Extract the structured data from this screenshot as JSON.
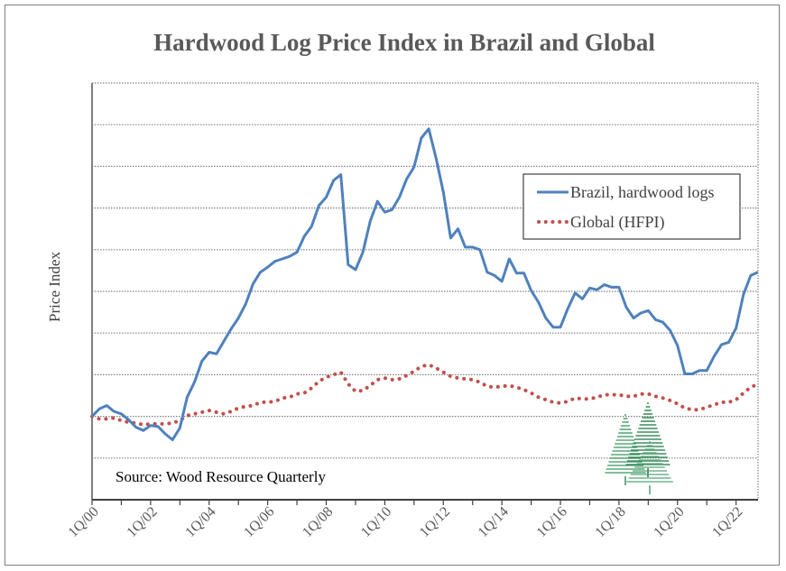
{
  "chart_data": {
    "type": "line",
    "title": "Hardwood Log Price Index in Brazil and Global",
    "xlabel": "",
    "ylabel": "Price Index",
    "x_tick_labels": [
      "1Q/00",
      "1Q/02",
      "1Q/04",
      "1Q/06",
      "1Q/08",
      "1Q/10",
      "1Q/12",
      "1Q/14",
      "1Q/16",
      "1Q/18",
      "1Q/20",
      "1Q/22"
    ],
    "x_start": "1Q/00",
    "x_end": "4Q/22",
    "x_frequency": "quarterly",
    "ylim": [
      0,
      500
    ],
    "y_tick_labels_visible": false,
    "grid": "horizontal dotted",
    "legend_position": "top-right",
    "annotation": "Source: Wood Resource Quarterly",
    "series": [
      {
        "name": "Brazil, hardwood logs",
        "color": "#4f81bd",
        "style": "solid",
        "values": [
          100,
          109,
          113,
          106,
          103,
          96,
          87,
          83,
          89,
          88,
          79,
          72,
          86,
          123,
          141,
          166,
          177,
          175,
          190,
          205,
          218,
          235,
          259,
          273,
          279,
          286,
          289,
          292,
          297,
          316,
          328,
          353,
          363,
          383,
          390,
          282,
          276,
          297,
          334,
          358,
          345,
          348,
          363,
          385,
          399,
          434,
          445,
          410,
          369,
          314,
          325,
          303,
          303,
          300,
          273,
          269,
          262,
          289,
          272,
          272,
          251,
          237,
          218,
          207,
          207,
          229,
          248,
          241,
          254,
          252,
          258,
          255,
          255,
          231,
          218,
          224,
          227,
          216,
          213,
          203,
          185,
          151,
          151,
          155,
          155,
          172,
          186,
          189,
          206,
          246,
          269,
          273
        ]
      },
      {
        "name": "Global (HFPI)",
        "color": "#c0504d",
        "style": "dotted",
        "values": [
          100,
          97,
          97,
          98,
          95,
          93,
          92,
          90,
          91,
          91,
          91,
          92,
          95,
          101,
          103,
          105,
          107,
          105,
          103,
          106,
          110,
          112,
          113,
          117,
          117,
          118,
          122,
          123,
          127,
          128,
          134,
          142,
          147,
          150,
          153,
          139,
          130,
          131,
          137,
          144,
          146,
          144,
          145,
          149,
          154,
          160,
          162,
          158,
          153,
          148,
          146,
          145,
          144,
          141,
          136,
          135,
          136,
          137,
          135,
          132,
          128,
          123,
          120,
          117,
          116,
          118,
          122,
          121,
          121,
          123,
          126,
          126,
          126,
          124,
          124,
          127,
          127,
          124,
          122,
          119,
          115,
          110,
          108,
          108,
          111,
          114,
          117,
          117,
          120,
          128,
          135,
          139
        ]
      }
    ]
  },
  "colors": {
    "title": "#595959",
    "axis": "#808080",
    "grid": "#808080",
    "logo": "#1e7b45"
  },
  "logo": {
    "icon": "tree-logo-icon"
  }
}
